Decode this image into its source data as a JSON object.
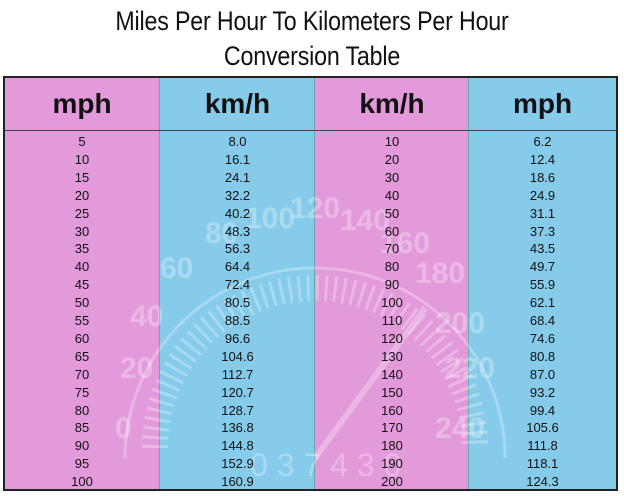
{
  "title": {
    "line1": "Miles Per Hour To Kilometers Per Hour",
    "line2": "Conversion Table"
  },
  "colors": {
    "pink": "#e29ada",
    "blue": "#86cbea",
    "border": "#222222"
  },
  "headers": [
    "mph",
    "km/h",
    "km/h",
    "mph"
  ],
  "columns": [
    [
      "5",
      "10",
      "15",
      "20",
      "25",
      "30",
      "35",
      "40",
      "45",
      "50",
      "55",
      "60",
      "65",
      "70",
      "75",
      "80",
      "85",
      "90",
      "95",
      "100"
    ],
    [
      "8.0",
      "16.1",
      "24.1",
      "32.2",
      "40.2",
      "48.3",
      "56.3",
      "64.4",
      "72.4",
      "80.5",
      "88.5",
      "96.6",
      "104.6",
      "112.7",
      "120.7",
      "128.7",
      "136.8",
      "144.8",
      "152.9",
      "160.9"
    ],
    [
      "10",
      "20",
      "30",
      "40",
      "50",
      "60",
      "70",
      "80",
      "90",
      "100",
      "110",
      "120",
      "130",
      "140",
      "150",
      "160",
      "170",
      "180",
      "190",
      "200"
    ],
    [
      "6.2",
      "12.4",
      "18.6",
      "24.9",
      "31.1",
      "37.3",
      "43.5",
      "49.7",
      "55.9",
      "62.1",
      "68.4",
      "74.6",
      "80.8",
      "87.0",
      "93.2",
      "99.4",
      "105.6",
      "111.8",
      "118.1",
      "124.3"
    ]
  ],
  "watermark": {
    "icon": "speedometer-icon",
    "labels": [
      "0",
      "20",
      "40",
      "60",
      "80",
      "100",
      "120",
      "140",
      "160",
      "180",
      "200",
      "220",
      "240"
    ],
    "odometer": "0 3 7 4 3 0"
  }
}
